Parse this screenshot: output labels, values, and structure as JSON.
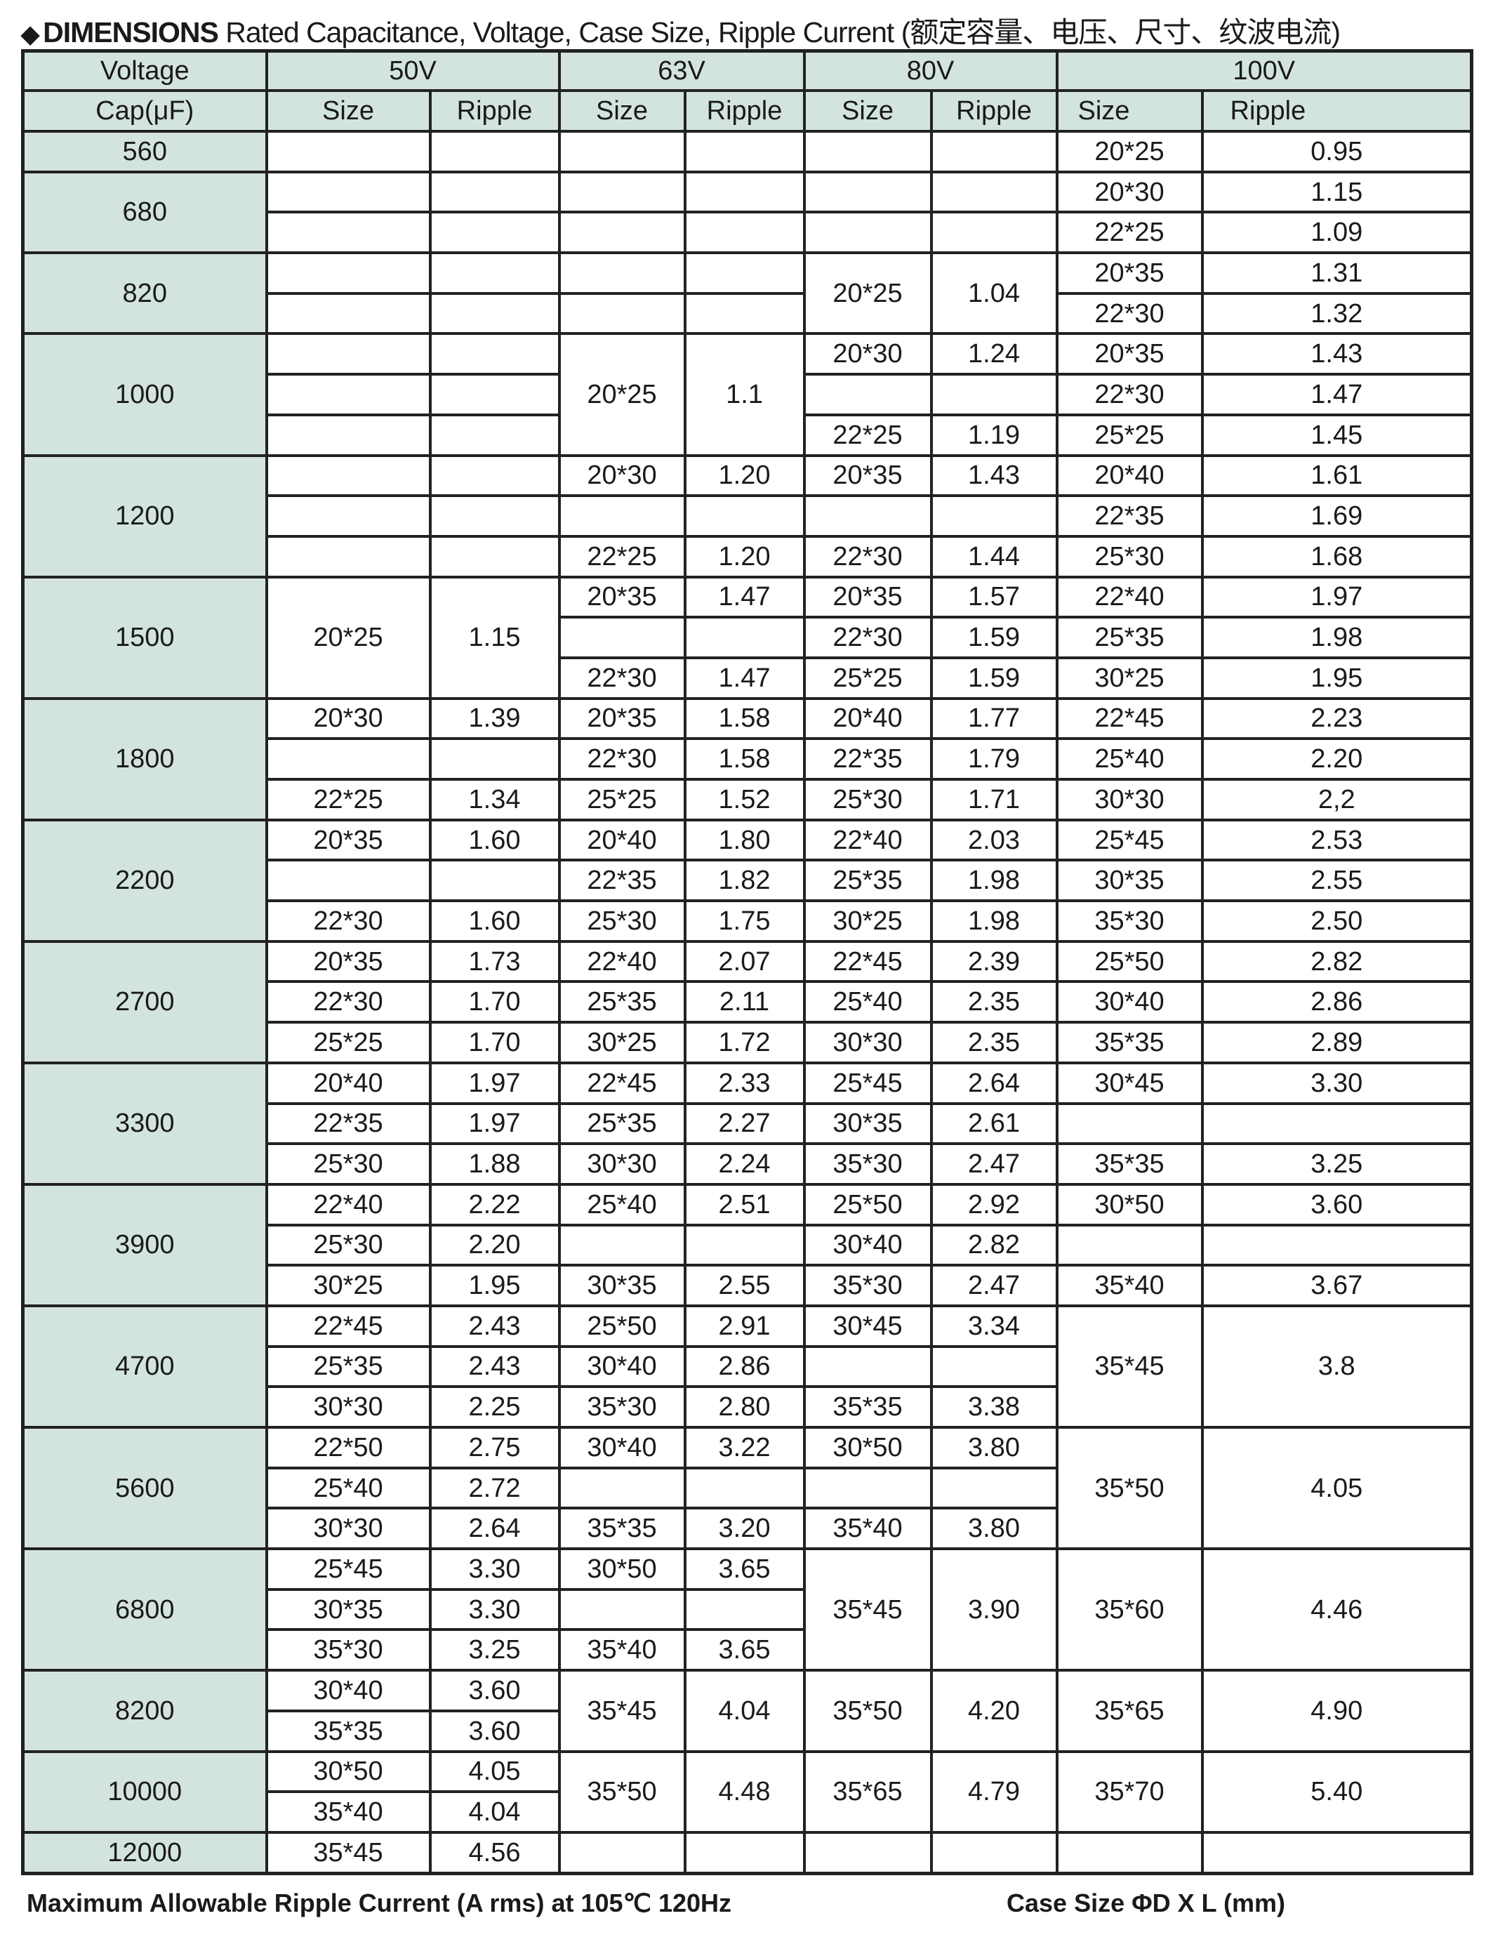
{
  "title": {
    "bullet": "◆",
    "main": "DIMENSIONS",
    "sub": "Rated Capacitance, Voltage, Case Size, Ripple Current (额定容量、电压、尺寸、纹波电流)"
  },
  "table": {
    "header_voltage": "Voltage",
    "voltages": [
      "50V",
      "63V",
      "80V",
      "100V"
    ],
    "header_cap": "Cap(μF)",
    "size_label": "Size",
    "ripple_label": "Ripple",
    "rows": [
      [
        [
          "560",
          1
        ],
        "",
        "",
        "",
        "",
        "",
        "",
        "20*25",
        "0.95"
      ],
      [
        [
          "680",
          2
        ],
        "",
        "",
        "",
        "",
        "",
        "",
        "20*30",
        "1.15"
      ],
      [
        "",
        "",
        "",
        "",
        "",
        "",
        "22*25",
        "1.09"
      ],
      [
        [
          "820",
          2
        ],
        "",
        "",
        "",
        "",
        [
          "20*25",
          2
        ],
        [
          "1.04",
          2
        ],
        "20*35",
        "1.31"
      ],
      [
        "",
        "",
        "",
        "",
        "22*30",
        "1.32"
      ],
      [
        [
          "1000",
          3
        ],
        "",
        "",
        [
          "20*25",
          3
        ],
        [
          "1.1",
          3
        ],
        "20*30",
        "1.24",
        "20*35",
        "1.43"
      ],
      [
        "",
        "",
        "",
        "",
        "22*30",
        "1.47"
      ],
      [
        "",
        "",
        "22*25",
        "1.19",
        "25*25",
        "1.45"
      ],
      [
        [
          "1200",
          3
        ],
        "",
        "",
        "20*30",
        "1.20",
        "20*35",
        "1.43",
        "20*40",
        "1.61"
      ],
      [
        "",
        "",
        "",
        "",
        "",
        "",
        "22*35",
        "1.69"
      ],
      [
        "",
        "",
        "22*25",
        "1.20",
        "22*30",
        "1.44",
        "25*30",
        "1.68"
      ],
      [
        [
          "1500",
          3
        ],
        [
          "20*25",
          3
        ],
        [
          "1.15",
          3
        ],
        "20*35",
        "1.47",
        "20*35",
        "1.57",
        "22*40",
        "1.97"
      ],
      [
        "",
        "",
        "22*30",
        "1.59",
        "25*35",
        "1.98"
      ],
      [
        "22*30",
        "1.47",
        "25*25",
        "1.59",
        "30*25",
        "1.95"
      ],
      [
        [
          "1800",
          3
        ],
        "20*30",
        "1.39",
        "20*35",
        "1.58",
        "20*40",
        "1.77",
        "22*45",
        "2.23"
      ],
      [
        "",
        "",
        "22*30",
        "1.58",
        "22*35",
        "1.79",
        "25*40",
        "2.20"
      ],
      [
        "22*25",
        "1.34",
        "25*25",
        "1.52",
        "25*30",
        "1.71",
        "30*30",
        "2,2"
      ],
      [
        [
          "2200",
          3
        ],
        "20*35",
        "1.60",
        "20*40",
        "1.80",
        "22*40",
        "2.03",
        "25*45",
        "2.53"
      ],
      [
        "",
        "",
        "22*35",
        "1.82",
        "25*35",
        "1.98",
        "30*35",
        "2.55"
      ],
      [
        "22*30",
        "1.60",
        "25*30",
        "1.75",
        "30*25",
        "1.98",
        "35*30",
        "2.50"
      ],
      [
        [
          "2700",
          3
        ],
        "20*35",
        "1.73",
        "22*40",
        "2.07",
        "22*45",
        "2.39",
        "25*50",
        "2.82"
      ],
      [
        "22*30",
        "1.70",
        "25*35",
        "2.11",
        "25*40",
        "2.35",
        "30*40",
        "2.86"
      ],
      [
        "25*25",
        "1.70",
        "30*25",
        "1.72",
        "30*30",
        "2.35",
        "35*35",
        "2.89"
      ],
      [
        [
          "3300",
          3
        ],
        "20*40",
        "1.97",
        "22*45",
        "2.33",
        "25*45",
        "2.64",
        "30*45",
        "3.30"
      ],
      [
        "22*35",
        "1.97",
        "25*35",
        "2.27",
        "30*35",
        "2.61",
        "",
        ""
      ],
      [
        "25*30",
        "1.88",
        "30*30",
        "2.24",
        "35*30",
        "2.47",
        "35*35",
        "3.25"
      ],
      [
        [
          "3900",
          3
        ],
        "22*40",
        "2.22",
        "25*40",
        "2.51",
        "25*50",
        "2.92",
        "30*50",
        "3.60"
      ],
      [
        "25*30",
        "2.20",
        "",
        "",
        "30*40",
        "2.82",
        "",
        ""
      ],
      [
        "30*25",
        "1.95",
        "30*35",
        "2.55",
        "35*30",
        "2.47",
        "35*40",
        "3.67"
      ],
      [
        [
          "4700",
          3
        ],
        "22*45",
        "2.43",
        "25*50",
        "2.91",
        "30*45",
        "3.34",
        [
          "35*45",
          3
        ],
        [
          "3.8",
          3
        ]
      ],
      [
        "25*35",
        "2.43",
        "30*40",
        "2.86",
        "",
        ""
      ],
      [
        "30*30",
        "2.25",
        "35*30",
        "2.80",
        "35*35",
        "3.38"
      ],
      [
        [
          "5600",
          3
        ],
        "22*50",
        "2.75",
        "30*40",
        "3.22",
        "30*50",
        "3.80",
        [
          "35*50",
          3
        ],
        [
          "4.05",
          3
        ]
      ],
      [
        "25*40",
        "2.72",
        "",
        "",
        "",
        ""
      ],
      [
        "30*30",
        "2.64",
        "35*35",
        "3.20",
        "35*40",
        "3.80"
      ],
      [
        [
          "6800",
          3
        ],
        "25*45",
        "3.30",
        "30*50",
        "3.65",
        [
          "35*45",
          3
        ],
        [
          "3.90",
          3
        ],
        [
          "35*60",
          3
        ],
        [
          "4.46",
          3
        ]
      ],
      [
        "30*35",
        "3.30",
        "",
        ""
      ],
      [
        "35*30",
        "3.25",
        "35*40",
        "3.65"
      ],
      [
        [
          "8200",
          2
        ],
        "30*40",
        "3.60",
        [
          "35*45",
          2
        ],
        [
          "4.04",
          2
        ],
        [
          "35*50",
          2
        ],
        [
          "4.20",
          2
        ],
        [
          "35*65",
          2
        ],
        [
          "4.90",
          2
        ]
      ],
      [
        "35*35",
        "3.60"
      ],
      [
        [
          "10000",
          2
        ],
        "30*50",
        "4.05",
        [
          "35*50",
          2
        ],
        [
          "4.48",
          2
        ],
        [
          "35*65",
          2
        ],
        [
          "4.79",
          2
        ],
        [
          "35*70",
          2
        ],
        [
          "5.40",
          2
        ]
      ],
      [
        "35*40",
        "4.04"
      ],
      [
        [
          "12000",
          1
        ],
        "35*45",
        "4.56",
        "",
        "",
        "",
        "",
        "",
        ""
      ]
    ]
  },
  "footer": {
    "left": "Maximum Allowable Ripple Current (A rms) at 105℃ 120Hz",
    "right": "Case Size ΦD X L (mm)"
  },
  "colors": {
    "header_bg": "#d3e4dd",
    "border": "#222222"
  }
}
